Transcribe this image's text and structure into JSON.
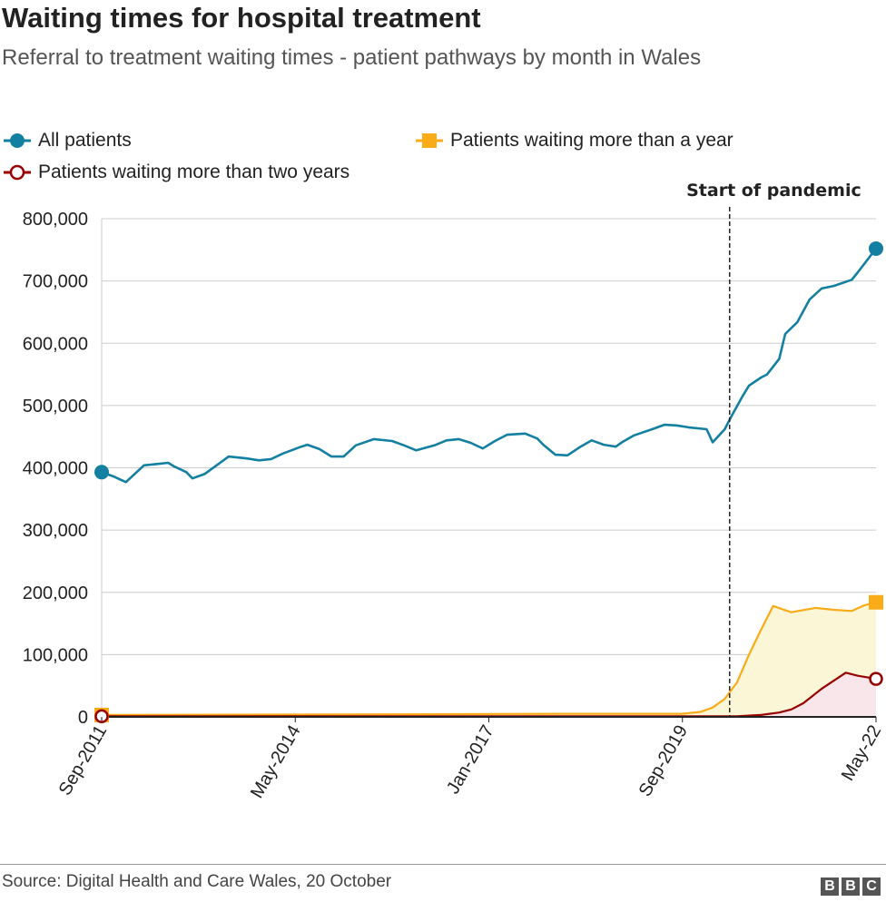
{
  "title": "Waiting times for hospital treatment",
  "subtitle": "Referral to treatment waiting times - patient pathways by month in Wales",
  "source": "Source: Digital Health and Care Wales, 20 October",
  "logo": "BBC",
  "colors": {
    "all": "#1380A1",
    "year": "#FAAB18",
    "two_years": "#990000",
    "year_fill": "#FBF6D6",
    "two_fill": "#F8E6EA"
  },
  "chart_data": {
    "type": "line",
    "title": "Waiting times for hospital treatment",
    "xlabel": "",
    "ylabel": "",
    "xlim": [
      "2011-09",
      "2022-05"
    ],
    "ylim": [
      0,
      800000
    ],
    "yticks": [
      0,
      100000,
      200000,
      300000,
      400000,
      500000,
      600000,
      700000,
      800000
    ],
    "ytick_labels": [
      "0",
      "100,000",
      "200,000",
      "300,000",
      "400,000",
      "500,000",
      "600,000",
      "700,000",
      "800,000"
    ],
    "xticks": [
      "2011-09",
      "2014-05",
      "2017-01",
      "2019-09",
      "2022-05"
    ],
    "xtick_labels": [
      "Sep-2011",
      "May-2014",
      "Jan-2017",
      "Sep-2019",
      "May-22"
    ],
    "grid": "horizontal",
    "legend": "top",
    "annotation": {
      "label": "Start of pandemic",
      "x": "2020-03"
    },
    "series": [
      {
        "name": "All patients",
        "marker": "filled-circle",
        "points": [
          [
            "2011-09",
            393000
          ],
          [
            "2011-11",
            386000
          ],
          [
            "2012-01",
            377000
          ],
          [
            "2012-03",
            395000
          ],
          [
            "2012-04",
            404000
          ],
          [
            "2012-06",
            406000
          ],
          [
            "2012-08",
            408000
          ],
          [
            "2012-09",
            402000
          ],
          [
            "2012-11",
            393000
          ],
          [
            "2012-12",
            383000
          ],
          [
            "2013-02",
            390000
          ],
          [
            "2013-04",
            404000
          ],
          [
            "2013-06",
            418000
          ],
          [
            "2013-09",
            415000
          ],
          [
            "2013-11",
            412000
          ],
          [
            "2014-01",
            414000
          ],
          [
            "2014-03",
            423000
          ],
          [
            "2014-06",
            434000
          ],
          [
            "2014-07",
            437000
          ],
          [
            "2014-09",
            430000
          ],
          [
            "2014-11",
            418000
          ],
          [
            "2015-01",
            418000
          ],
          [
            "2015-03",
            436000
          ],
          [
            "2015-06",
            446000
          ],
          [
            "2015-09",
            443000
          ],
          [
            "2015-11",
            436000
          ],
          [
            "2016-01",
            428000
          ],
          [
            "2016-04",
            436000
          ],
          [
            "2016-06",
            444000
          ],
          [
            "2016-08",
            446000
          ],
          [
            "2016-10",
            440000
          ],
          [
            "2016-12",
            431000
          ],
          [
            "2017-02",
            443000
          ],
          [
            "2017-04",
            453000
          ],
          [
            "2017-07",
            455000
          ],
          [
            "2017-09",
            447000
          ],
          [
            "2017-10",
            437000
          ],
          [
            "2017-12",
            421000
          ],
          [
            "2018-02",
            420000
          ],
          [
            "2018-04",
            433000
          ],
          [
            "2018-06",
            444000
          ],
          [
            "2018-08",
            437000
          ],
          [
            "2018-10",
            434000
          ],
          [
            "2018-11",
            441000
          ],
          [
            "2019-01",
            452000
          ],
          [
            "2019-04",
            462000
          ],
          [
            "2019-06",
            469000
          ],
          [
            "2019-08",
            468000
          ],
          [
            "2019-10",
            465000
          ],
          [
            "2020-01",
            462000
          ],
          [
            "2020-02",
            441000
          ],
          [
            "2020-04",
            462000
          ],
          [
            "2020-05",
            481000
          ],
          [
            "2020-07",
            516000
          ],
          [
            "2020-08",
            532000
          ],
          [
            "2020-10",
            545000
          ],
          [
            "2020-11",
            550000
          ],
          [
            "2021-01",
            575000
          ],
          [
            "2021-02",
            615000
          ],
          [
            "2021-04",
            634000
          ],
          [
            "2021-06",
            670000
          ],
          [
            "2021-08",
            688000
          ],
          [
            "2021-10",
            692000
          ],
          [
            "2022-01",
            702000
          ],
          [
            "2022-02",
            714000
          ],
          [
            "2022-05",
            752000
          ]
        ]
      },
      {
        "name": "Patients waiting more than a year",
        "marker": "filled-square",
        "points": [
          [
            "2011-09",
            3000
          ],
          [
            "2015-01",
            4000
          ],
          [
            "2018-01",
            5000
          ],
          [
            "2019-09",
            5000
          ],
          [
            "2019-12",
            8000
          ],
          [
            "2020-02",
            15000
          ],
          [
            "2020-04",
            29000
          ],
          [
            "2020-06",
            55000
          ],
          [
            "2020-08",
            100000
          ],
          [
            "2020-10",
            140000
          ],
          [
            "2020-12",
            178000
          ],
          [
            "2021-03",
            168000
          ],
          [
            "2021-07",
            175000
          ],
          [
            "2021-10",
            172000
          ],
          [
            "2022-01",
            170000
          ],
          [
            "2022-03",
            179000
          ],
          [
            "2022-05",
            184000
          ]
        ]
      },
      {
        "name": "Patients waiting more than two years",
        "marker": "open-circle",
        "points": [
          [
            "2011-09",
            1000
          ],
          [
            "2020-06",
            1000
          ],
          [
            "2020-10",
            3000
          ],
          [
            "2021-01",
            7000
          ],
          [
            "2021-03",
            12000
          ],
          [
            "2021-05",
            22000
          ],
          [
            "2021-08",
            45000
          ],
          [
            "2021-12",
            71000
          ],
          [
            "2022-02",
            66000
          ],
          [
            "2022-05",
            61000
          ]
        ]
      }
    ]
  }
}
